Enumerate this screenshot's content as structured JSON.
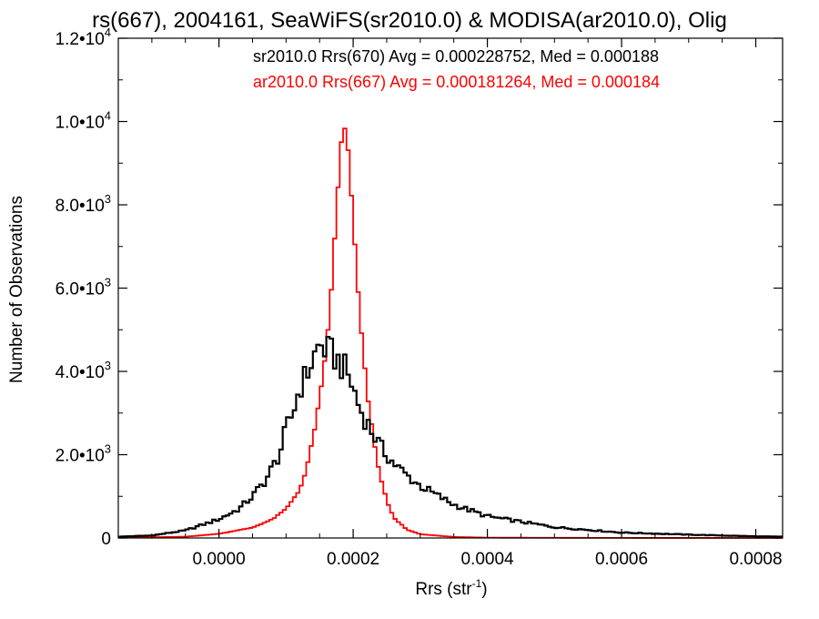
{
  "chart_data": {
    "type": "histogram",
    "title": "rs(667), 2004161, SeaWiFS(sr2010.0) & MODISA(ar2010.0), Olig",
    "xlabel": "Rrs (str",
    "xlabel_sup": "-1",
    "xlabel_close": ")",
    "ylabel": "Number of Observations",
    "xlim": [
      -0.00015,
      0.00084
    ],
    "ylim": [
      0,
      12000
    ],
    "grid": false,
    "x_ticks": [
      {
        "value": 0.0,
        "label": "0.0000"
      },
      {
        "value": 0.0002,
        "label": "0.0002"
      },
      {
        "value": 0.0004,
        "label": "0.0004"
      },
      {
        "value": 0.0006,
        "label": "0.0006"
      },
      {
        "value": 0.0008,
        "label": "0.0008"
      }
    ],
    "y_ticks": [
      {
        "value": 0,
        "mantissa": "0",
        "exp": ""
      },
      {
        "value": 2000,
        "mantissa": "2.0•10",
        "exp": "3"
      },
      {
        "value": 4000,
        "mantissa": "4.0•10",
        "exp": "3"
      },
      {
        "value": 6000,
        "mantissa": "6.0•10",
        "exp": "3"
      },
      {
        "value": 8000,
        "mantissa": "8.0•10",
        "exp": "3"
      },
      {
        "value": 10000,
        "mantissa": "1.0•10",
        "exp": "4"
      },
      {
        "value": 12000,
        "mantissa": "1.2•10",
        "exp": "4"
      }
    ],
    "legend_position": "top-right",
    "bin_width": 5e-06,
    "series": [
      {
        "name": "sr2010.0 Rrs(670) Avg = 0.000228752, Med = 0.000188",
        "color": "#000000",
        "points": [
          [
            -0.00015,
            30
          ],
          [
            -0.0001,
            60
          ],
          [
            -5e-05,
            180
          ],
          [
            0.0,
            450
          ],
          [
            3e-05,
            700
          ],
          [
            5e-05,
            1000
          ],
          [
            7e-05,
            1400
          ],
          [
            9e-05,
            2000
          ],
          [
            0.0001,
            2600
          ],
          [
            0.00011,
            3000
          ],
          [
            0.00012,
            3600
          ],
          [
            0.00013,
            3900
          ],
          [
            0.00014,
            4300
          ],
          [
            0.00015,
            4650
          ],
          [
            0.00016,
            4500
          ],
          [
            0.00017,
            4400
          ],
          [
            0.00018,
            4200
          ],
          [
            0.00019,
            4000
          ],
          [
            0.0002,
            3600
          ],
          [
            0.00021,
            3100
          ],
          [
            0.00022,
            2800
          ],
          [
            0.00024,
            2200
          ],
          [
            0.00026,
            1800
          ],
          [
            0.00028,
            1500
          ],
          [
            0.0003,
            1250
          ],
          [
            0.00035,
            800
          ],
          [
            0.0004,
            520
          ],
          [
            0.0005,
            260
          ],
          [
            0.0006,
            130
          ],
          [
            0.0007,
            80
          ],
          [
            0.0008,
            40
          ],
          [
            0.00084,
            30
          ]
        ]
      },
      {
        "name": "ar2010.0 Rrs(667) Avg = 0.000181264, Med = 0.000184",
        "color": "#ff0000",
        "points": [
          [
            -0.00015,
            5
          ],
          [
            -5e-05,
            30
          ],
          [
            0.0,
            100
          ],
          [
            5e-05,
            250
          ],
          [
            8e-05,
            450
          ],
          [
            0.0001,
            700
          ],
          [
            0.00012,
            1150
          ],
          [
            0.00013,
            1600
          ],
          [
            0.00014,
            2400
          ],
          [
            0.00015,
            3300
          ],
          [
            0.00016,
            4500
          ],
          [
            0.00017,
            6500
          ],
          [
            0.00018,
            9000
          ],
          [
            0.000185,
            10000
          ],
          [
            0.00019,
            9800
          ],
          [
            0.0002,
            7600
          ],
          [
            0.00021,
            5300
          ],
          [
            0.00022,
            3600
          ],
          [
            0.00023,
            2400
          ],
          [
            0.00024,
            1500
          ],
          [
            0.00025,
            900
          ],
          [
            0.00026,
            500
          ],
          [
            0.00028,
            200
          ],
          [
            0.0003,
            90
          ],
          [
            0.00035,
            25
          ],
          [
            0.0004,
            8
          ],
          [
            0.0006,
            2
          ],
          [
            0.00084,
            0
          ]
        ]
      }
    ]
  }
}
